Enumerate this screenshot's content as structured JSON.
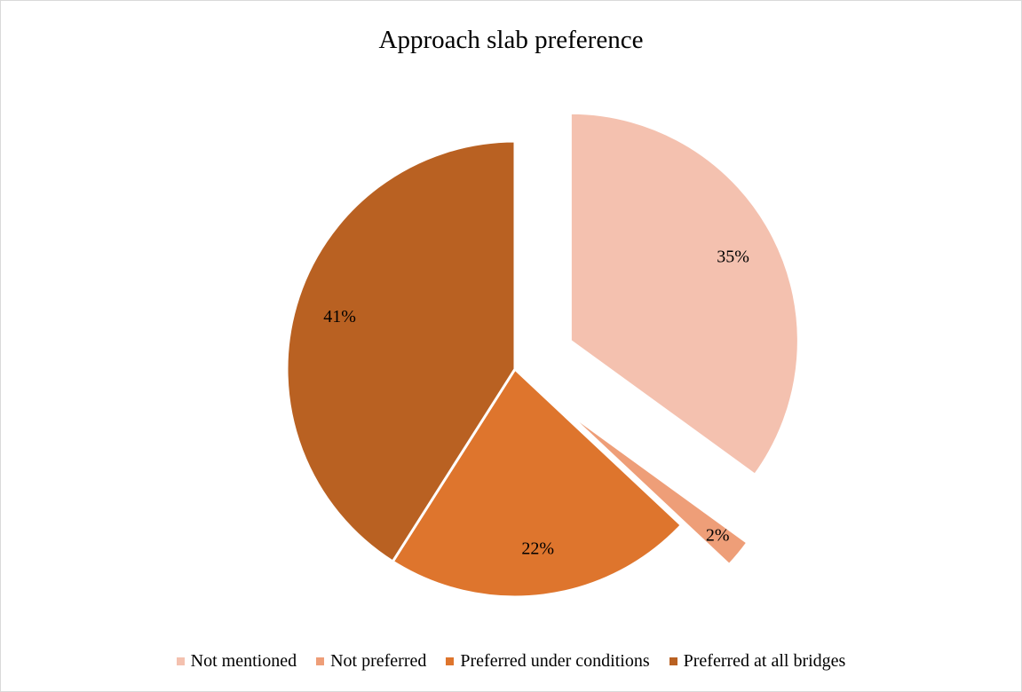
{
  "chart_data": {
    "type": "pie",
    "title": "Approach slab preference",
    "slices": [
      {
        "label": "Not mentioned",
        "value": 35,
        "display": "35%",
        "color": "#f4c1af",
        "exploded": true
      },
      {
        "label": "Not preferred",
        "value": 2,
        "display": "2%",
        "color": "#ee9e78",
        "exploded": true
      },
      {
        "label": "Preferred under conditions",
        "value": 22,
        "display": "22%",
        "color": "#de752d",
        "exploded": false
      },
      {
        "label": "Preferred at all bridges",
        "value": 41,
        "display": "41%",
        "color": "#b96122",
        "exploded": false
      }
    ],
    "legend_position": "bottom"
  }
}
